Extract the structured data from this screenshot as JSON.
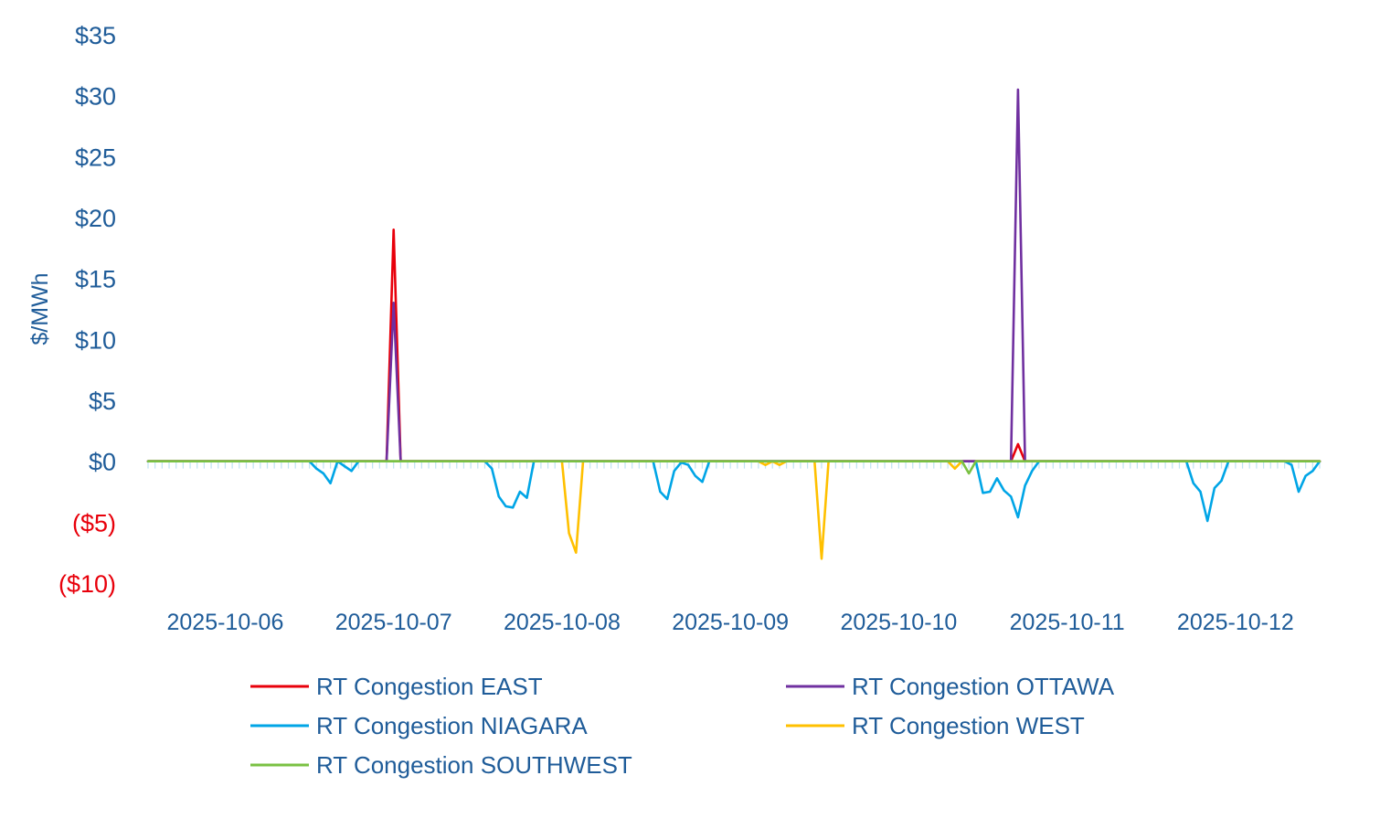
{
  "chart_data": {
    "type": "line",
    "title": "",
    "xlabel": "",
    "ylabel": "$/MWh",
    "ylim": [
      -10,
      35
    ],
    "grid": false,
    "legend_position": "bottom",
    "yticks": [
      {
        "value": 35,
        "label": "$35",
        "negative": false
      },
      {
        "value": 30,
        "label": "$30",
        "negative": false
      },
      {
        "value": 25,
        "label": "$25",
        "negative": false
      },
      {
        "value": 20,
        "label": "$20",
        "negative": false
      },
      {
        "value": 15,
        "label": "$15",
        "negative": false
      },
      {
        "value": 10,
        "label": "$10",
        "negative": false
      },
      {
        "value": 5,
        "label": "$5",
        "negative": false
      },
      {
        "value": 0,
        "label": "$0",
        "negative": false
      },
      {
        "value": -5,
        "label": "($5)",
        "negative": true
      },
      {
        "value": -10,
        "label": "($10)",
        "negative": true
      }
    ],
    "xrange": [
      "2025-10-06 01:00",
      "2025-10-13 00:00"
    ],
    "x_tick_labels": [
      {
        "x": "2025-10-06",
        "label": "2025-10-06"
      },
      {
        "x": "2025-10-07",
        "label": "2025-10-07"
      },
      {
        "x": "2025-10-08",
        "label": "2025-10-08"
      },
      {
        "x": "2025-10-09",
        "label": "2025-10-09"
      },
      {
        "x": "2025-10-10",
        "label": "2025-10-10"
      },
      {
        "x": "2025-10-11",
        "label": "2025-10-11"
      },
      {
        "x": "2025-10-12",
        "label": "2025-10-12"
      }
    ],
    "series": [
      {
        "name": "RT Congestion EAST",
        "color": "#e8000b",
        "points": [
          {
            "x": "2025-10-06 01:00",
            "y": 0
          },
          {
            "x": "2025-10-07 11:00",
            "y": 0
          },
          {
            "x": "2025-10-07 12:00",
            "y": 19
          },
          {
            "x": "2025-10-07 13:00",
            "y": 0
          },
          {
            "x": "2025-10-11 04:00",
            "y": 0
          },
          {
            "x": "2025-10-11 05:00",
            "y": 1.4
          },
          {
            "x": "2025-10-11 06:00",
            "y": 0
          },
          {
            "x": "2025-10-13 00:00",
            "y": 0
          }
        ]
      },
      {
        "name": "RT Congestion OTTAWA",
        "color": "#7030a0",
        "points": [
          {
            "x": "2025-10-06 01:00",
            "y": 0
          },
          {
            "x": "2025-10-07 11:00",
            "y": 0
          },
          {
            "x": "2025-10-07 12:00",
            "y": 13
          },
          {
            "x": "2025-10-07 13:00",
            "y": 0
          },
          {
            "x": "2025-10-11 04:00",
            "y": 0
          },
          {
            "x": "2025-10-11 05:00",
            "y": 30.5
          },
          {
            "x": "2025-10-11 06:00",
            "y": 0
          },
          {
            "x": "2025-10-13 00:00",
            "y": 0
          }
        ]
      },
      {
        "name": "RT Congestion NIAGARA",
        "color": "#00a5e6",
        "points": [
          {
            "x": "2025-10-06 01:00",
            "y": 0
          },
          {
            "x": "2025-10-07 00:00",
            "y": 0
          },
          {
            "x": "2025-10-07 01:00",
            "y": -0.6
          },
          {
            "x": "2025-10-07 02:00",
            "y": -1
          },
          {
            "x": "2025-10-07 03:00",
            "y": -1.8
          },
          {
            "x": "2025-10-07 04:00",
            "y": 0
          },
          {
            "x": "2025-10-07 05:00",
            "y": -0.4
          },
          {
            "x": "2025-10-07 06:00",
            "y": -0.8
          },
          {
            "x": "2025-10-07 07:00",
            "y": 0
          },
          {
            "x": "2025-10-08 01:00",
            "y": 0
          },
          {
            "x": "2025-10-08 02:00",
            "y": -0.6
          },
          {
            "x": "2025-10-08 03:00",
            "y": -2.9
          },
          {
            "x": "2025-10-08 04:00",
            "y": -3.7
          },
          {
            "x": "2025-10-08 05:00",
            "y": -3.8
          },
          {
            "x": "2025-10-08 06:00",
            "y": -2.5
          },
          {
            "x": "2025-10-08 07:00",
            "y": -3
          },
          {
            "x": "2025-10-08 08:00",
            "y": 0
          },
          {
            "x": "2025-10-09 01:00",
            "y": 0
          },
          {
            "x": "2025-10-09 02:00",
            "y": -2.5
          },
          {
            "x": "2025-10-09 03:00",
            "y": -3.1
          },
          {
            "x": "2025-10-09 04:00",
            "y": -0.8
          },
          {
            "x": "2025-10-09 05:00",
            "y": -0.1
          },
          {
            "x": "2025-10-09 06:00",
            "y": -0.3
          },
          {
            "x": "2025-10-09 07:00",
            "y": -1.2
          },
          {
            "x": "2025-10-09 08:00",
            "y": -1.7
          },
          {
            "x": "2025-10-09 09:00",
            "y": 0
          },
          {
            "x": "2025-10-10 23:00",
            "y": 0
          },
          {
            "x": "2025-10-11 00:00",
            "y": -2.6
          },
          {
            "x": "2025-10-11 01:00",
            "y": -2.5
          },
          {
            "x": "2025-10-11 02:00",
            "y": -1.4
          },
          {
            "x": "2025-10-11 03:00",
            "y": -2.4
          },
          {
            "x": "2025-10-11 04:00",
            "y": -2.9
          },
          {
            "x": "2025-10-11 05:00",
            "y": -4.6
          },
          {
            "x": "2025-10-11 06:00",
            "y": -2
          },
          {
            "x": "2025-10-11 07:00",
            "y": -0.8
          },
          {
            "x": "2025-10-11 08:00",
            "y": 0
          },
          {
            "x": "2025-10-12 05:00",
            "y": 0
          },
          {
            "x": "2025-10-12 06:00",
            "y": -1.8
          },
          {
            "x": "2025-10-12 07:00",
            "y": -2.5
          },
          {
            "x": "2025-10-12 08:00",
            "y": -4.9
          },
          {
            "x": "2025-10-12 09:00",
            "y": -2.2
          },
          {
            "x": "2025-10-12 10:00",
            "y": -1.6
          },
          {
            "x": "2025-10-12 11:00",
            "y": 0
          },
          {
            "x": "2025-10-12 19:00",
            "y": 0
          },
          {
            "x": "2025-10-12 20:00",
            "y": -0.3
          },
          {
            "x": "2025-10-12 21:00",
            "y": -2.5
          },
          {
            "x": "2025-10-12 22:00",
            "y": -1.2
          },
          {
            "x": "2025-10-12 23:00",
            "y": -0.8
          },
          {
            "x": "2025-10-13 00:00",
            "y": 0
          }
        ]
      },
      {
        "name": "RT Congestion WEST",
        "color": "#ffc000",
        "points": [
          {
            "x": "2025-10-06 01:00",
            "y": 0
          },
          {
            "x": "2025-10-08 12:00",
            "y": 0
          },
          {
            "x": "2025-10-08 13:00",
            "y": -5.9
          },
          {
            "x": "2025-10-08 14:00",
            "y": -7.5
          },
          {
            "x": "2025-10-08 15:00",
            "y": 0
          },
          {
            "x": "2025-10-09 16:00",
            "y": 0
          },
          {
            "x": "2025-10-09 17:00",
            "y": -0.3
          },
          {
            "x": "2025-10-09 18:00",
            "y": 0
          },
          {
            "x": "2025-10-09 19:00",
            "y": -0.3
          },
          {
            "x": "2025-10-09 20:00",
            "y": 0
          },
          {
            "x": "2025-10-10 00:00",
            "y": 0
          },
          {
            "x": "2025-10-10 01:00",
            "y": -8
          },
          {
            "x": "2025-10-10 02:00",
            "y": 0
          },
          {
            "x": "2025-10-10 19:00",
            "y": 0
          },
          {
            "x": "2025-10-10 20:00",
            "y": -0.6
          },
          {
            "x": "2025-10-10 21:00",
            "y": 0
          },
          {
            "x": "2025-10-13 00:00",
            "y": 0
          }
        ]
      },
      {
        "name": "RT Congestion SOUTHWEST",
        "color": "#7ac143",
        "points": [
          {
            "x": "2025-10-06 01:00",
            "y": 0
          },
          {
            "x": "2025-10-10 21:00",
            "y": 0
          },
          {
            "x": "2025-10-10 22:00",
            "y": -1
          },
          {
            "x": "2025-10-10 23:00",
            "y": 0
          },
          {
            "x": "2025-10-13 00:00",
            "y": 0
          }
        ]
      }
    ]
  }
}
